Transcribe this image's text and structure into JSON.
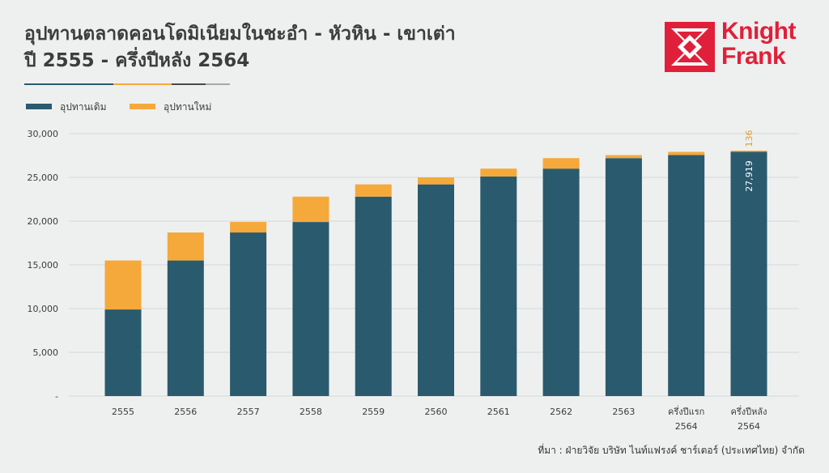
{
  "title_line1": "อุปทานตลาดคอนโดมิเนียมในชะอำ - หัวหิน - เขาเต่า",
  "title_line2": "ปี 2555 - ครึ่งปีหลัง 2564",
  "logo": {
    "line1": "Knight",
    "line2": "Frank",
    "color": "#e0203a"
  },
  "source": "ที่มา : ฝ่ายวิจัย บริษัท ไนท์แฟรงค์ ชาร์เตอร์ (ประเทศไทย) จำกัด",
  "colors": {
    "existing": "#2a5a6e",
    "new": "#f5a93a",
    "grid": "#d4d8d8",
    "annotation_new": "#e49a2c"
  },
  "chart_data": {
    "type": "bar",
    "stacked": true,
    "categories": [
      "2555",
      "2556",
      "2557",
      "2558",
      "2559",
      "2560",
      "2561",
      "2562",
      "2563",
      "ครึ่งปีแรก 2564",
      "ครึ่งปีหลัง 2564"
    ],
    "series": [
      {
        "name": "อุปทานเดิม",
        "values": [
          9900,
          15500,
          18700,
          19900,
          22800,
          24200,
          25100,
          26000,
          27200,
          27550,
          27919
        ]
      },
      {
        "name": "อุปทานใหม่",
        "values": [
          5600,
          3200,
          1200,
          2900,
          1400,
          800,
          900,
          1200,
          350,
          369,
          136
        ]
      }
    ],
    "ylim": [
      0,
      30000
    ],
    "yticks": [
      0,
      5000,
      10000,
      15000,
      20000,
      25000,
      30000
    ],
    "ytick_labels": [
      "-",
      "5,000",
      "10,000",
      "15,000",
      "20,000",
      "25,000",
      "30,000"
    ],
    "annotations": [
      {
        "category_index": 10,
        "series": "อุปทานเดิม",
        "text": "27,919"
      },
      {
        "category_index": 10,
        "series": "อุปทานใหม่",
        "text": "136"
      }
    ],
    "grid": true,
    "legend_position": "top-left"
  }
}
